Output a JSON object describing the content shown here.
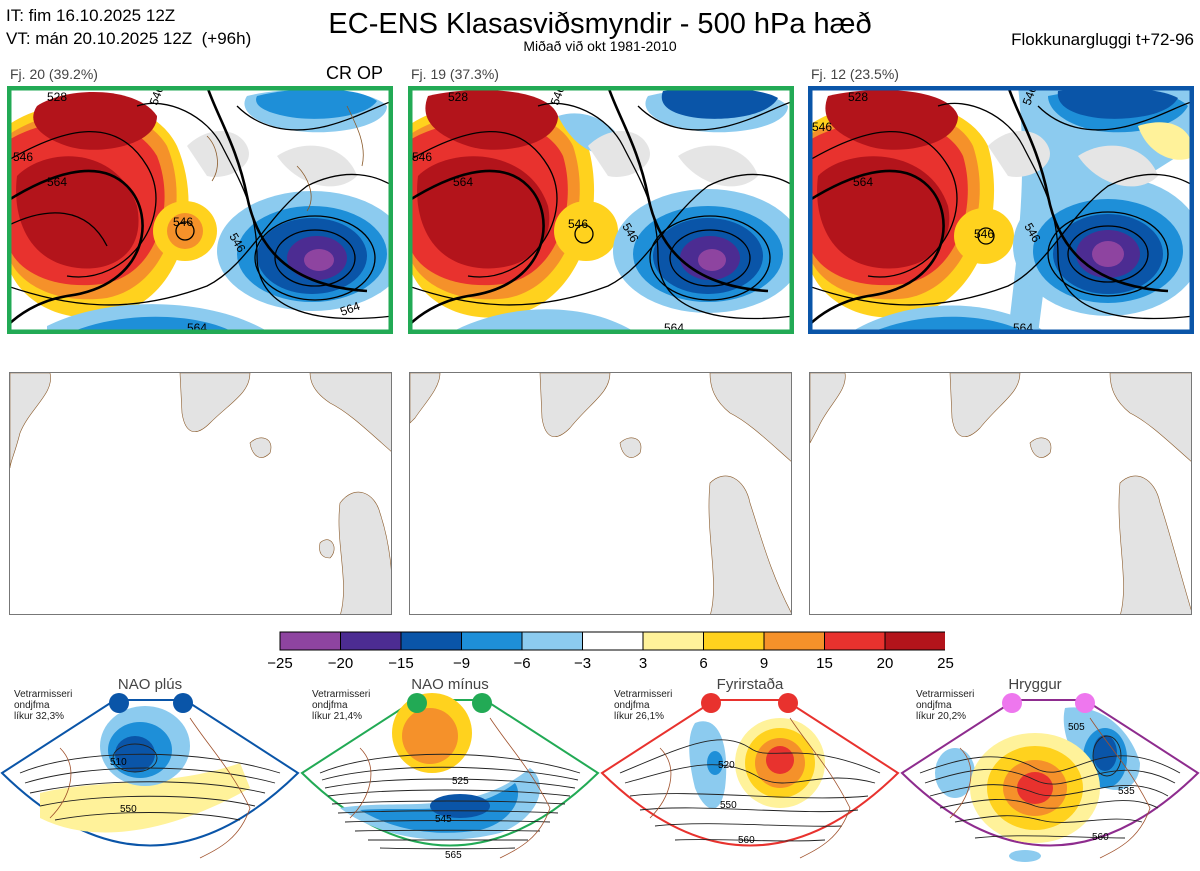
{
  "header": {
    "init_time": "IT: fim 16.10.2025 12Z",
    "valid_time": "VT: mán 20.10.2025 12Z  (+96h)",
    "title": "EC-ENS Klasasviðsmyndir - 500 hPa hæð",
    "subtitle": "Miðað við okt 1981-2010",
    "window": "Flokkunargluggi t+72-96"
  },
  "clusters": [
    {
      "caption": "Fj. 20 (39.2%)",
      "border_color": "#22aa55",
      "contours": [
        "528",
        "546",
        "546",
        "564",
        "546",
        "546",
        "564",
        "564"
      ],
      "extra": "CR OP"
    },
    {
      "caption": "Fj. 19 (37.3%)",
      "border_color": "#22aa55",
      "contours": [
        "528",
        "546",
        "546",
        "564",
        "546",
        "546",
        "564"
      ],
      "extra": ""
    },
    {
      "caption": "Fj. 12 (23.5%)",
      "border_color": "#0a55a8",
      "contours": [
        "528",
        "546",
        "546",
        "564",
        "546",
        "546",
        "564"
      ],
      "extra": ""
    }
  ],
  "colorbar": {
    "ticks": [
      "−25",
      "−20",
      "−15",
      "−9",
      "−6",
      "−3",
      "3",
      "6",
      "9",
      "15",
      "20",
      "25"
    ],
    "colors": [
      "#8e44a0",
      "#4c2c92",
      "#0a55a8",
      "#1e8fd8",
      "#8ccbef",
      "#ffffff",
      "#fff29a",
      "#ffd21e",
      "#f5912a",
      "#e8322e",
      "#b3141b"
    ]
  },
  "regimes": [
    {
      "name": "NAO plús",
      "season": "Vetrarmisseri",
      "stat": "ondjfma",
      "prob": "líkur 32,3%",
      "dot_color": "#0a55a8",
      "frame_color": "#0a55a8",
      "labels": [
        "510",
        "550"
      ]
    },
    {
      "name": "NAO mínus",
      "season": "Vetrarmisseri",
      "stat": "ondjfma",
      "prob": "líkur 21,4%",
      "dot_color": "#22aa55",
      "frame_color": "#22aa55",
      "labels": [
        "525",
        "545",
        "565"
      ]
    },
    {
      "name": "Fyrirstaða",
      "season": "Vetrarmisseri",
      "stat": "ondjfma",
      "prob": "líkur 26,1%",
      "dot_color": "#e8322e",
      "frame_color": "#e8322e",
      "labels": [
        "520",
        "550",
        "560"
      ]
    },
    {
      "name": "Hryggur",
      "season": "Vetrarmisseri",
      "stat": "ondjfma",
      "prob": "líkur 20,2%",
      "dot_color": "#ee77ee",
      "frame_color": "#8e2c8e",
      "labels": [
        "505",
        "535",
        "560"
      ]
    }
  ]
}
